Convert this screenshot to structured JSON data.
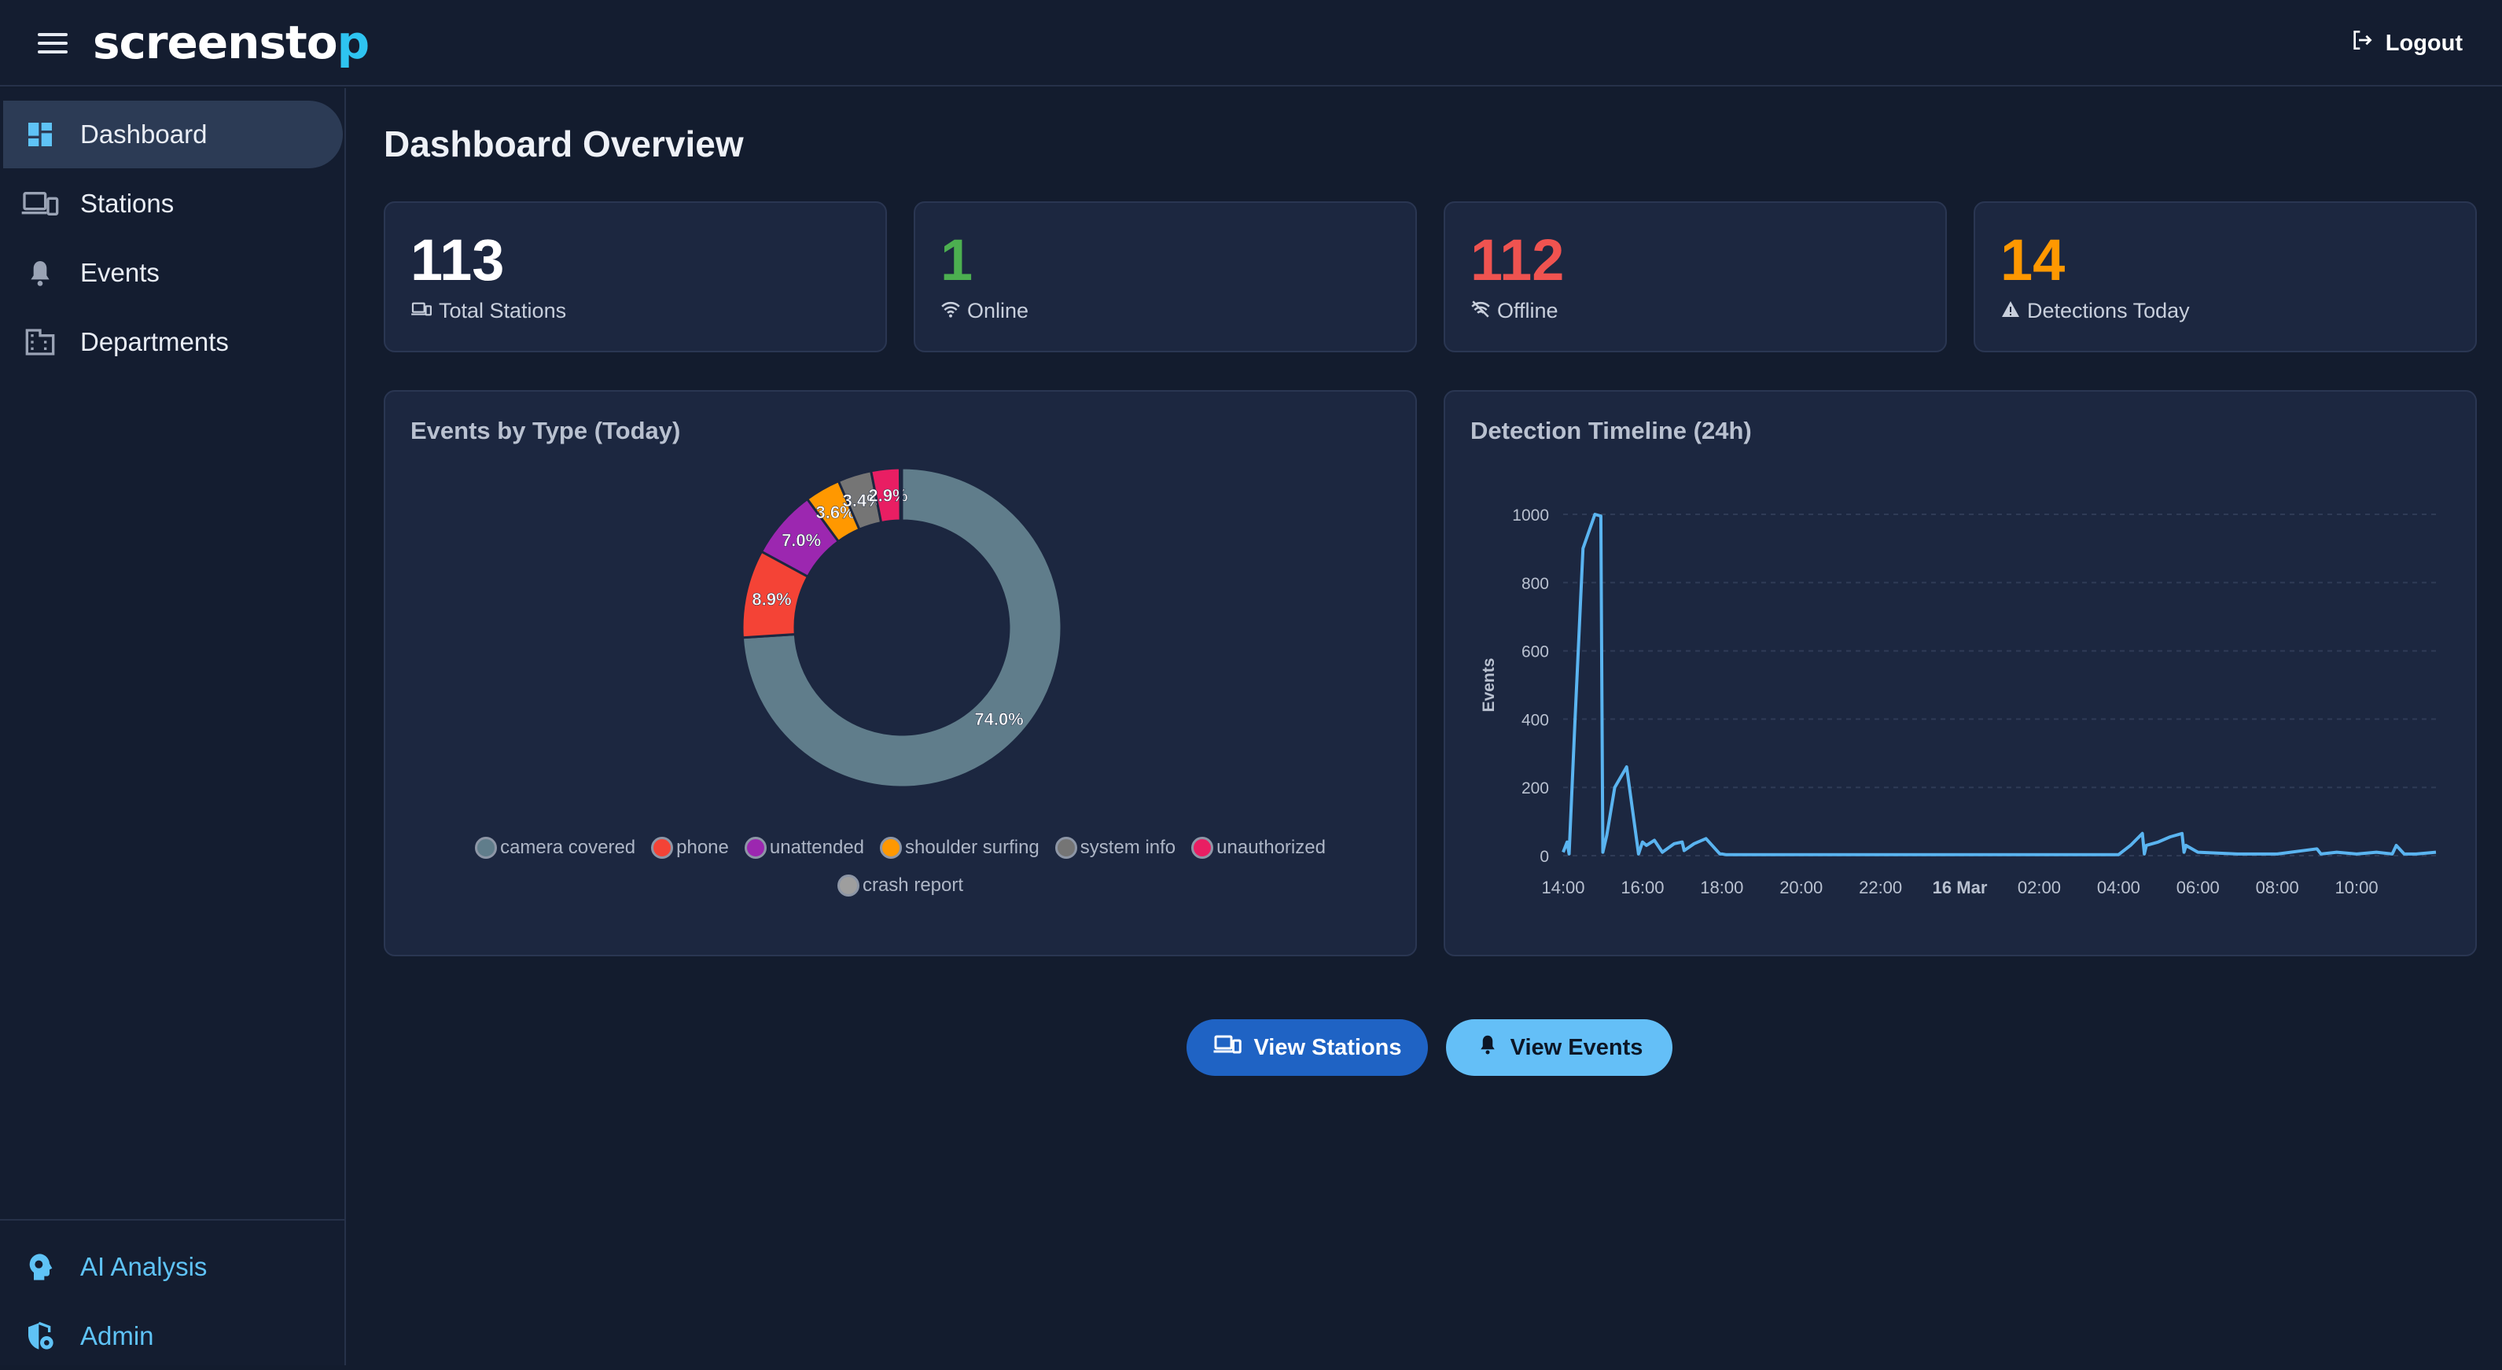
{
  "app": {
    "logo_main": "screensto",
    "logo_accent": "p",
    "accent_color": "#2ec4f1"
  },
  "header": {
    "logout_label": "Logout"
  },
  "sidebar": {
    "items": [
      {
        "label": "Dashboard",
        "icon": "dashboard-icon",
        "active": true
      },
      {
        "label": "Stations",
        "icon": "devices-icon"
      },
      {
        "label": "Events",
        "icon": "bell-icon"
      },
      {
        "label": "Departments",
        "icon": "building-icon"
      }
    ],
    "bottom_items": [
      {
        "label": "AI Analysis",
        "icon": "ai-brain-icon"
      },
      {
        "label": "Admin",
        "icon": "admin-shield-icon"
      }
    ]
  },
  "main": {
    "title": "Dashboard Overview",
    "stats": [
      {
        "value": "113",
        "label": "Total Stations",
        "icon": "devices-icon",
        "color": "#ffffff"
      },
      {
        "value": "1",
        "label": "Online",
        "icon": "wifi-icon",
        "color": "#4caf50"
      },
      {
        "value": "112",
        "label": "Offline",
        "icon": "wifi-off-icon",
        "color": "#ef5350"
      },
      {
        "value": "14",
        "label": "Detections Today",
        "icon": "warning-icon",
        "color": "#ff9800"
      }
    ],
    "buttons": {
      "view_stations": "View Stations",
      "view_events": "View Events"
    }
  },
  "chart_data": [
    {
      "type": "pie",
      "title": "Events by Type (Today)",
      "categories": [
        "camera covered",
        "phone",
        "unattended",
        "shoulder surfing",
        "system info",
        "unauthorized",
        "crash report"
      ],
      "values": [
        74.0,
        8.9,
        7.0,
        3.6,
        3.4,
        2.9,
        0.2
      ],
      "data_labels": [
        "74.0%",
        "8.9%",
        "7.0%",
        "3.6%",
        "3.4%",
        "2.9%",
        ""
      ],
      "colors": [
        "#607d8b",
        "#f44336",
        "#9c27b0",
        "#ff9800",
        "#757575",
        "#e91e63",
        "#9e9e9e"
      ],
      "legend": "bottom"
    },
    {
      "type": "line",
      "title": "Detection Timeline (24h)",
      "ylabel": "Events",
      "ylim": [
        0,
        1000
      ],
      "yticks": [
        "0",
        "200",
        "400",
        "600",
        "800",
        "1000"
      ],
      "xticks": [
        "14:00",
        "16:00",
        "18:00",
        "20:00",
        "22:00",
        "16 Mar",
        "02:00",
        "04:00",
        "06:00",
        "08:00",
        "10:00"
      ],
      "series": [
        {
          "color": "#5ab4f0",
          "x": [
            14.0,
            14.1,
            14.15,
            14.3,
            14.5,
            14.8,
            14.95,
            15.0,
            15.1,
            15.3,
            15.6,
            15.9,
            16.0,
            16.1,
            16.3,
            16.5,
            16.8,
            17.0,
            17.05,
            17.3,
            17.6,
            17.95,
            18.0,
            18.1,
            20.0,
            22.0,
            24.0,
            26.0,
            28.0,
            28.3,
            28.6,
            28.65,
            28.7,
            29.0,
            29.3,
            29.6,
            29.65,
            29.7,
            30.0,
            31.0,
            32.0,
            33.0,
            33.1,
            33.5,
            34.0,
            34.5,
            34.9,
            35.0,
            35.2,
            35.5,
            36.0
          ],
          "y": [
            10,
            40,
            5,
            400,
            900,
            1000,
            995,
            10,
            60,
            200,
            260,
            5,
            40,
            30,
            45,
            10,
            35,
            40,
            15,
            35,
            50,
            5,
            5,
            3,
            3,
            3,
            3,
            3,
            3,
            30,
            65,
            5,
            30,
            40,
            55,
            65,
            10,
            30,
            10,
            5,
            5,
            20,
            5,
            10,
            5,
            10,
            5,
            30,
            5,
            5,
            10
          ]
        }
      ]
    }
  ]
}
